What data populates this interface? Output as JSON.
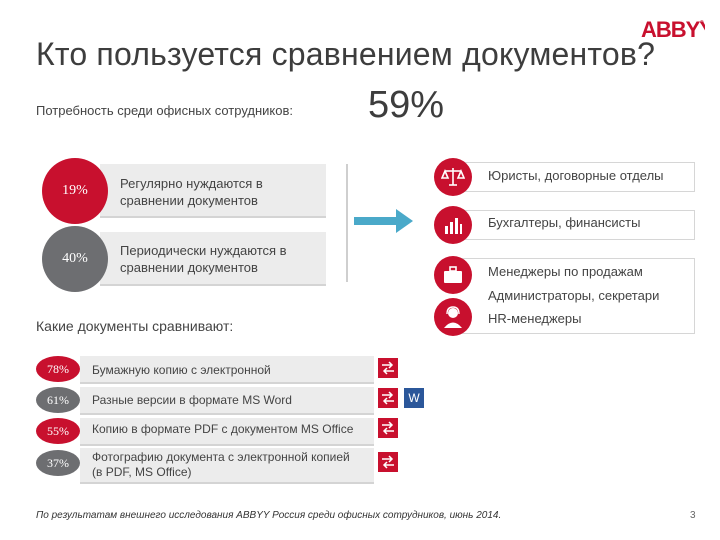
{
  "brand": {
    "logo_text": "ABBYY",
    "accent": "#c8102e",
    "dark": "#6d6e71"
  },
  "title": "Кто пользуется сравнением документов?",
  "subtitle": "Потребность среди офисных сотрудников:",
  "total_percent": "59%",
  "needs": [
    {
      "percent": "19%",
      "line1": "Регулярно нуждаются в",
      "line2": "сравнении документов",
      "color": "#c8102e"
    },
    {
      "percent": "40%",
      "line1": "Периодически нуждаются в",
      "line2": "сравнении документов",
      "color": "#6d6e71"
    }
  ],
  "roles": [
    {
      "icon": "scales-icon",
      "lines": [
        "Юристы, договорные отделы"
      ]
    },
    {
      "icon": "bar-chart-icon",
      "lines": [
        "Бухгалтеры, финансисты"
      ]
    },
    {
      "icon": "briefcase-icon",
      "lines": [
        "Менеджеры по продажам",
        "Администраторы, секретари",
        "HR-менеджеры"
      ]
    }
  ],
  "extra_icon": "headset-person-icon",
  "docs_title": "Какие документы сравнивают:",
  "docs": [
    {
      "percent": "78%",
      "lines": [
        "Бумажную копию с электронной"
      ],
      "color": "#c8102e"
    },
    {
      "percent": "61%",
      "lines": [
        "Разные версии в формате MS Word"
      ],
      "color": "#6d6e71",
      "word_badge": "W"
    },
    {
      "percent": "55%",
      "lines": [
        "Копию в формате PDF с документом MS Office"
      ],
      "color": "#c8102e"
    },
    {
      "percent": "37%",
      "lines": [
        "Фотографию документа с электронной копией",
        "(в PDF, MS Office)"
      ],
      "color": "#6d6e71"
    }
  ],
  "footer": "По результатам внешнего исследования ABBYY Россия среди офисных сотрудников, июнь 2014.",
  "page_number": "3"
}
